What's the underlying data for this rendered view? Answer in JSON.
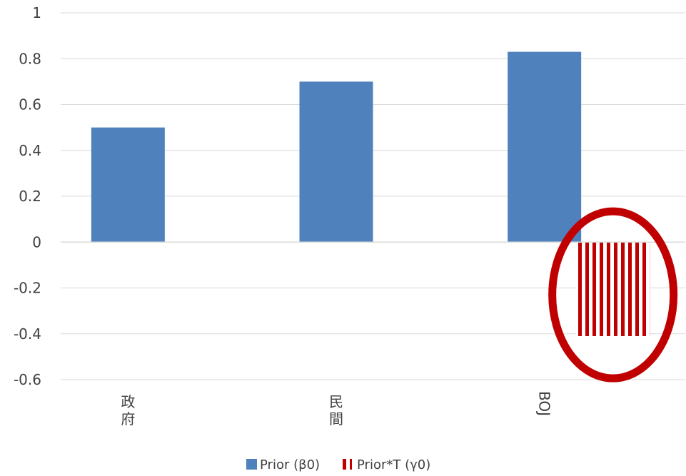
{
  "chart_data": {
    "type": "bar",
    "categories": [
      "政府",
      "民間",
      "BOJ"
    ],
    "series": [
      {
        "name": "Prior (β0)",
        "values": [
          0.5,
          0.7,
          0.83
        ],
        "color": "#4F81BD",
        "pattern": "solid"
      },
      {
        "name": "Prior*T  (γ0)",
        "values": [
          null,
          null,
          -0.41
        ],
        "color": "#C00000",
        "pattern": "vertical-stripes"
      }
    ],
    "ylim": [
      -0.6,
      1
    ],
    "yticks": [
      "1",
      "0.8",
      "0.6",
      "0.4",
      "0.2",
      "0",
      "-0.2",
      "-0.4",
      "-0.6"
    ],
    "grid": true,
    "legend_position": "bottom",
    "annotation": {
      "type": "ellipse",
      "color": "#C00000",
      "target": "BOJ Prior*T (γ0)"
    }
  }
}
